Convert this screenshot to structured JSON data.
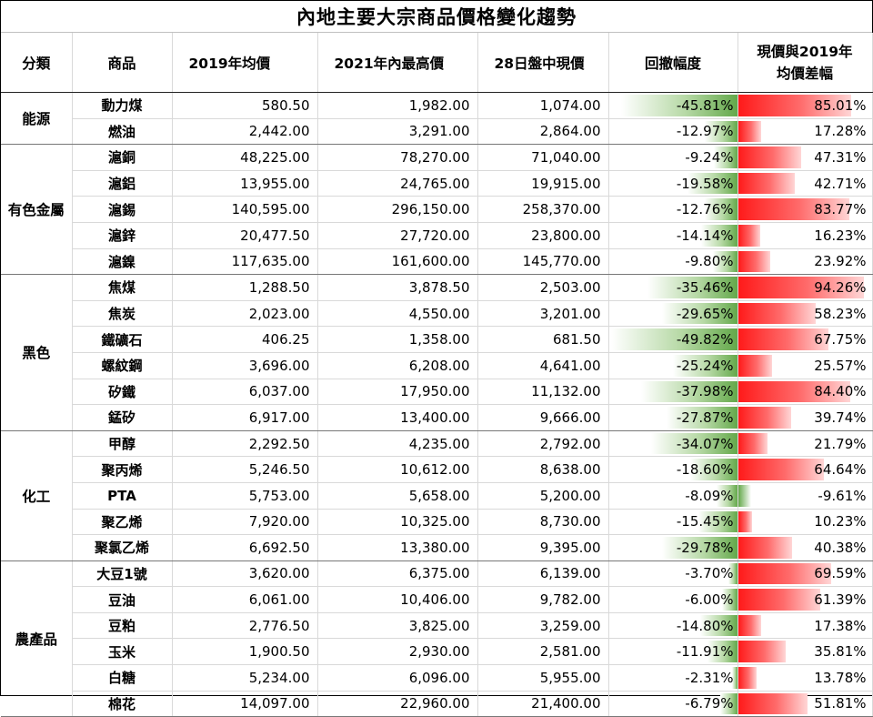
{
  "title": "內地主要大宗商品價格變化趨勢",
  "headers": {
    "category": "分類",
    "commodity": "商品",
    "avg2019": "2019年均價",
    "high2021": "2021年內最高價",
    "price28": "28日盤中現價",
    "pullback": "回撤幅度",
    "diff_line1": "現價與2019年",
    "diff_line2": "均價差幅"
  },
  "groups": [
    {
      "category": "能源",
      "rows": [
        {
          "name": "動力煤",
          "avg2019": "580.50",
          "high2021": "1,982.00",
          "price28": "1,074.00",
          "pullback": "-45.81%",
          "pullback_value": -45.81,
          "diff": "85.01%",
          "diff_value": 85.01
        },
        {
          "name": "燃油",
          "avg2019": "2,442.00",
          "high2021": "3,291.00",
          "price28": "2,864.00",
          "pullback": "-12.97%",
          "pullback_value": -12.97,
          "diff": "17.28%",
          "diff_value": 17.28
        }
      ]
    },
    {
      "category": "有色金屬",
      "rows": [
        {
          "name": "滬銅",
          "avg2019": "48,225.00",
          "high2021": "78,270.00",
          "price28": "71,040.00",
          "pullback": "-9.24%",
          "pullback_value": -9.24,
          "diff": "47.31%",
          "diff_value": 47.31
        },
        {
          "name": "滬鋁",
          "avg2019": "13,955.00",
          "high2021": "24,765.00",
          "price28": "19,915.00",
          "pullback": "-19.58%",
          "pullback_value": -19.58,
          "diff": "42.71%",
          "diff_value": 42.71
        },
        {
          "name": "滬錫",
          "avg2019": "140,595.00",
          "high2021": "296,150.00",
          "price28": "258,370.00",
          "pullback": "-12.76%",
          "pullback_value": -12.76,
          "diff": "83.77%",
          "diff_value": 83.77
        },
        {
          "name": "滬鋅",
          "avg2019": "20,477.50",
          "high2021": "27,720.00",
          "price28": "23,800.00",
          "pullback": "-14.14%",
          "pullback_value": -14.14,
          "diff": "16.23%",
          "diff_value": 16.23
        },
        {
          "name": "滬鎳",
          "avg2019": "117,635.00",
          "high2021": "161,600.00",
          "price28": "145,770.00",
          "pullback": "-9.80%",
          "pullback_value": -9.8,
          "diff": "23.92%",
          "diff_value": 23.92
        }
      ]
    },
    {
      "category": "黑色",
      "rows": [
        {
          "name": "焦煤",
          "avg2019": "1,288.50",
          "high2021": "3,878.50",
          "price28": "2,503.00",
          "pullback": "-35.46%",
          "pullback_value": -35.46,
          "diff": "94.26%",
          "diff_value": 94.26
        },
        {
          "name": "焦炭",
          "avg2019": "2,023.00",
          "high2021": "4,550.00",
          "price28": "3,201.00",
          "pullback": "-29.65%",
          "pullback_value": -29.65,
          "diff": "58.23%",
          "diff_value": 58.23
        },
        {
          "name": "鐵礦石",
          "avg2019": "406.25",
          "high2021": "1,358.00",
          "price28": "681.50",
          "pullback": "-49.82%",
          "pullback_value": -49.82,
          "diff": "67.75%",
          "diff_value": 67.75
        },
        {
          "name": "螺紋鋼",
          "avg2019": "3,696.00",
          "high2021": "6,208.00",
          "price28": "4,641.00",
          "pullback": "-25.24%",
          "pullback_value": -25.24,
          "diff": "25.57%",
          "diff_value": 25.57
        },
        {
          "name": "矽鐵",
          "avg2019": "6,037.00",
          "high2021": "17,950.00",
          "price28": "11,132.00",
          "pullback": "-37.98%",
          "pullback_value": -37.98,
          "diff": "84.40%",
          "diff_value": 84.4
        },
        {
          "name": "錳矽",
          "avg2019": "6,917.00",
          "high2021": "13,400.00",
          "price28": "9,666.00",
          "pullback": "-27.87%",
          "pullback_value": -27.87,
          "diff": "39.74%",
          "diff_value": 39.74
        }
      ]
    },
    {
      "category": "化工",
      "rows": [
        {
          "name": "甲醇",
          "avg2019": "2,292.50",
          "high2021": "4,235.00",
          "price28": "2,792.00",
          "pullback": "-34.07%",
          "pullback_value": -34.07,
          "diff": "21.79%",
          "diff_value": 21.79
        },
        {
          "name": "聚丙烯",
          "avg2019": "5,246.50",
          "high2021": "10,612.00",
          "price28": "8,638.00",
          "pullback": "-18.60%",
          "pullback_value": -18.6,
          "diff": "64.64%",
          "diff_value": 64.64
        },
        {
          "name": "PTA",
          "avg2019": "5,753.00",
          "high2021": "5,658.00",
          "price28": "5,200.00",
          "pullback": "-8.09%",
          "pullback_value": -8.09,
          "diff": "-9.61%",
          "diff_value": -9.61
        },
        {
          "name": "聚乙烯",
          "avg2019": "7,920.00",
          "high2021": "10,325.00",
          "price28": "8,730.00",
          "pullback": "-15.45%",
          "pullback_value": -15.45,
          "diff": "10.23%",
          "diff_value": 10.23
        },
        {
          "name": "聚氯乙烯",
          "avg2019": "6,692.50",
          "high2021": "13,380.00",
          "price28": "9,395.00",
          "pullback": "-29.78%",
          "pullback_value": -29.78,
          "diff": "40.38%",
          "diff_value": 40.38
        }
      ]
    },
    {
      "category": "農產品",
      "rows": [
        {
          "name": "大豆1號",
          "avg2019": "3,620.00",
          "high2021": "6,375.00",
          "price28": "6,139.00",
          "pullback": "-3.70%",
          "pullback_value": -3.7,
          "diff": "69.59%",
          "diff_value": 69.59
        },
        {
          "name": "豆油",
          "avg2019": "6,061.00",
          "high2021": "10,406.00",
          "price28": "9,782.00",
          "pullback": "-6.00%",
          "pullback_value": -6.0,
          "diff": "61.39%",
          "diff_value": 61.39
        },
        {
          "name": "豆粕",
          "avg2019": "2,776.50",
          "high2021": "3,825.00",
          "price28": "3,259.00",
          "pullback": "-14.80%",
          "pullback_value": -14.8,
          "diff": "17.38%",
          "diff_value": 17.38
        },
        {
          "name": "玉米",
          "avg2019": "1,900.50",
          "high2021": "2,930.00",
          "price28": "2,581.00",
          "pullback": "-11.91%",
          "pullback_value": -11.91,
          "diff": "35.81%",
          "diff_value": 35.81
        },
        {
          "name": "白糖",
          "avg2019": "5,234.00",
          "high2021": "6,096.00",
          "price28": "5,955.00",
          "pullback": "-2.31%",
          "pullback_value": -2.31,
          "diff": "13.78%",
          "diff_value": 13.78
        },
        {
          "name": "棉花",
          "avg2019": "14,097.00",
          "high2021": "22,960.00",
          "price28": "21,400.00",
          "pullback": "-6.79%",
          "pullback_value": -6.79,
          "diff": "51.81%",
          "diff_value": 51.81
        }
      ]
    }
  ]
}
